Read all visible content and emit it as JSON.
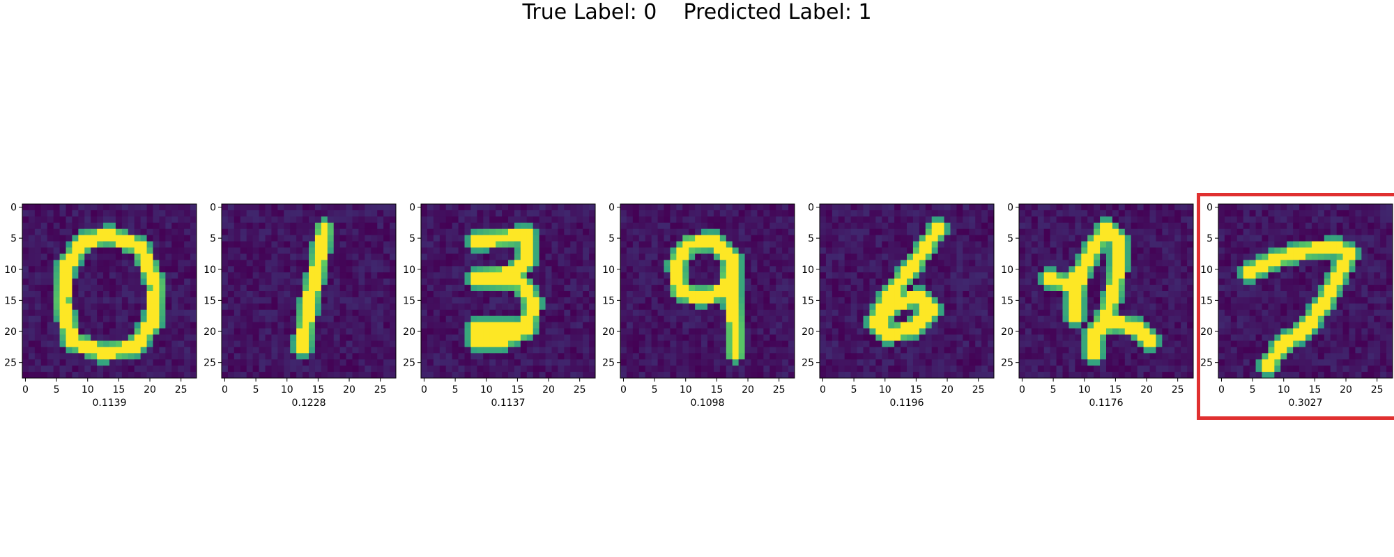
{
  "figure": {
    "title": "True Label: 0    Predicted Label: 1"
  },
  "chart_data": {
    "type": "heatmap",
    "colormap": "viridis",
    "image_size": [
      28,
      28
    ],
    "x_ticks": [
      0,
      5,
      10,
      15,
      20,
      25
    ],
    "y_ticks": [
      0,
      5,
      10,
      15,
      20,
      25
    ],
    "panels": [
      {
        "digit_shown": "0",
        "score_label": "0.1139",
        "score": 0.1139,
        "highlighted": false
      },
      {
        "digit_shown": "1",
        "score_label": "0.1228",
        "score": 0.1228,
        "highlighted": false
      },
      {
        "digit_shown": "3",
        "score_label": "0.1137",
        "score": 0.1137,
        "highlighted": false
      },
      {
        "digit_shown": "9",
        "score_label": "0.1098",
        "score": 0.1098,
        "highlighted": false
      },
      {
        "digit_shown": "6",
        "score_label": "0.1196",
        "score": 0.1196,
        "highlighted": false
      },
      {
        "digit_shown": "2",
        "score_label": "0.1176",
        "score": 0.1176,
        "highlighted": false
      },
      {
        "digit_shown": "7",
        "score_label": "0.3027",
        "score": 0.3027,
        "highlighted": true
      }
    ],
    "highlight_color": "#e03030"
  }
}
